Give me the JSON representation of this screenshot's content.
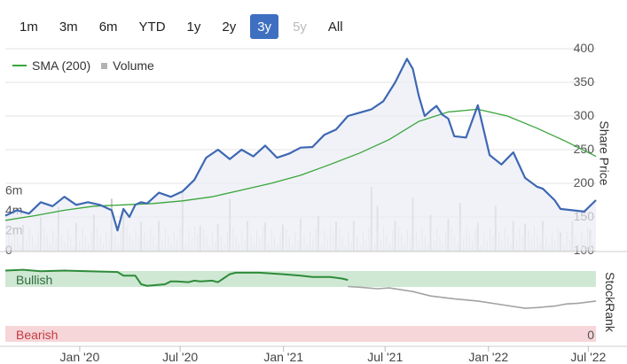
{
  "range_buttons": [
    {
      "label": "1m",
      "state": "normal"
    },
    {
      "label": "3m",
      "state": "normal"
    },
    {
      "label": "6m",
      "state": "normal"
    },
    {
      "label": "YTD",
      "state": "normal"
    },
    {
      "label": "1y",
      "state": "normal"
    },
    {
      "label": "2y",
      "state": "normal"
    },
    {
      "label": "3y",
      "state": "active"
    },
    {
      "label": "5y",
      "state": "disabled"
    },
    {
      "label": "All",
      "state": "normal"
    }
  ],
  "legend": {
    "sma_label": "SMA (200)",
    "volume_label": "Volume"
  },
  "colors": {
    "price": "#3e68b3",
    "sma": "#39a53a",
    "volume": "#c8c8c8",
    "bullish_band": "#cfe8d3",
    "bearish_band": "#f6d6d8",
    "rank_bull": "#2e8b3a",
    "rank_neutral": "#a3a3a3"
  },
  "chart_data": [
    {
      "type": "line",
      "title": "",
      "ylabel": "Share Price",
      "ylim": [
        100,
        400
      ],
      "y_ticks": [
        "400",
        "350",
        "300",
        "250",
        "200",
        "150",
        "100"
      ],
      "x_ticks": [
        "Jan '20",
        "Jul '20",
        "Jan '21",
        "Jul '21",
        "Jan '22",
        "Jul '22"
      ],
      "x_tick_t": [
        0.126,
        0.296,
        0.471,
        0.643,
        0.818,
        0.987
      ],
      "series": [
        {
          "name": "Share Price",
          "t": [
            0.0,
            0.02,
            0.04,
            0.06,
            0.08,
            0.1,
            0.12,
            0.14,
            0.16,
            0.18,
            0.19,
            0.2,
            0.21,
            0.22,
            0.23,
            0.24,
            0.26,
            0.28,
            0.3,
            0.32,
            0.34,
            0.36,
            0.38,
            0.4,
            0.42,
            0.44,
            0.46,
            0.48,
            0.5,
            0.52,
            0.54,
            0.56,
            0.58,
            0.6,
            0.62,
            0.64,
            0.66,
            0.68,
            0.69,
            0.7,
            0.71,
            0.72,
            0.73,
            0.74,
            0.75,
            0.76,
            0.78,
            0.8,
            0.82,
            0.84,
            0.86,
            0.88,
            0.9,
            0.91,
            0.93,
            0.94,
            0.96,
            0.98,
            1.0
          ],
          "values": [
            152,
            160,
            155,
            172,
            166,
            180,
            168,
            172,
            168,
            160,
            130,
            162,
            150,
            168,
            172,
            170,
            186,
            180,
            188,
            205,
            238,
            250,
            236,
            250,
            240,
            256,
            238,
            244,
            253,
            254,
            272,
            280,
            300,
            305,
            310,
            322,
            350,
            385,
            370,
            330,
            300,
            308,
            315,
            302,
            296,
            270,
            268,
            316,
            242,
            228,
            246,
            208,
            195,
            192,
            175,
            162,
            160,
            158,
            175
          ]
        },
        {
          "name": "SMA (200)",
          "t": [
            0.0,
            0.05,
            0.1,
            0.15,
            0.2,
            0.25,
            0.3,
            0.35,
            0.4,
            0.45,
            0.5,
            0.55,
            0.6,
            0.65,
            0.7,
            0.75,
            0.8,
            0.85,
            0.9,
            0.95,
            1.0
          ],
          "values": [
            145,
            152,
            160,
            166,
            168,
            170,
            174,
            180,
            190,
            200,
            212,
            228,
            245,
            265,
            292,
            306,
            310,
            300,
            282,
            262,
            240
          ]
        }
      ]
    },
    {
      "type": "bar",
      "title": "",
      "ylabel": "",
      "ylim": [
        0,
        8
      ],
      "y_ticks": [
        "6m",
        "4m",
        "2m",
        "0"
      ],
      "series": [
        {
          "name": "Volume",
          "t": [
            0.03,
            0.06,
            0.09,
            0.12,
            0.15,
            0.18,
            0.2,
            0.23,
            0.26,
            0.3,
            0.33,
            0.36,
            0.38,
            0.41,
            0.44,
            0.47,
            0.5,
            0.53,
            0.56,
            0.59,
            0.62,
            0.63,
            0.66,
            0.69,
            0.72,
            0.75,
            0.77,
            0.8,
            0.83,
            0.86,
            0.88,
            0.91,
            0.94,
            0.96,
            0.99
          ],
          "values": [
            2.6,
            3.4,
            4.4,
            2.8,
            3.6,
            5.2,
            3.9,
            2.9,
            3.0,
            5.8,
            2.5,
            2.7,
            5.2,
            3.0,
            2.8,
            2.6,
            3.2,
            3.5,
            2.9,
            3.0,
            6.4,
            4.5,
            3.0,
            5.3,
            3.6,
            3.2,
            4.8,
            2.8,
            4.5,
            3.0,
            2.7,
            3.0,
            1.8,
            2.9,
            2.1
          ]
        }
      ]
    },
    {
      "type": "line",
      "title": "",
      "ylabel": "StockRank",
      "band_labels": {
        "bullish": "Bullish",
        "bearish": "Bearish",
        "zero": "0"
      },
      "ylim": [
        0,
        100
      ],
      "series": [
        {
          "name": "StockRank (bullish)",
          "t": [
            0.0,
            0.03,
            0.06,
            0.1,
            0.14,
            0.19,
            0.2,
            0.22,
            0.23,
            0.24,
            0.27,
            0.28,
            0.29,
            0.31,
            0.32,
            0.33,
            0.35,
            0.36,
            0.38,
            0.39,
            0.4,
            0.43,
            0.47,
            0.5,
            0.52,
            0.55,
            0.57,
            0.58
          ],
          "values": [
            97,
            98,
            96,
            97,
            96,
            95,
            90,
            90,
            78,
            76,
            78,
            82,
            82,
            81,
            83,
            82,
            83,
            81,
            92,
            94,
            94,
            94,
            92,
            90,
            88,
            88,
            86,
            84
          ]
        },
        {
          "name": "StockRank (neutral)",
          "t": [
            0.58,
            0.6,
            0.63,
            0.65,
            0.69,
            0.72,
            0.76,
            0.8,
            0.84,
            0.88,
            0.9,
            0.93,
            0.95,
            0.97,
            1.0
          ],
          "values": [
            75,
            74,
            72,
            73,
            68,
            62,
            58,
            55,
            50,
            45,
            46,
            48,
            51,
            52,
            55
          ]
        }
      ]
    }
  ]
}
